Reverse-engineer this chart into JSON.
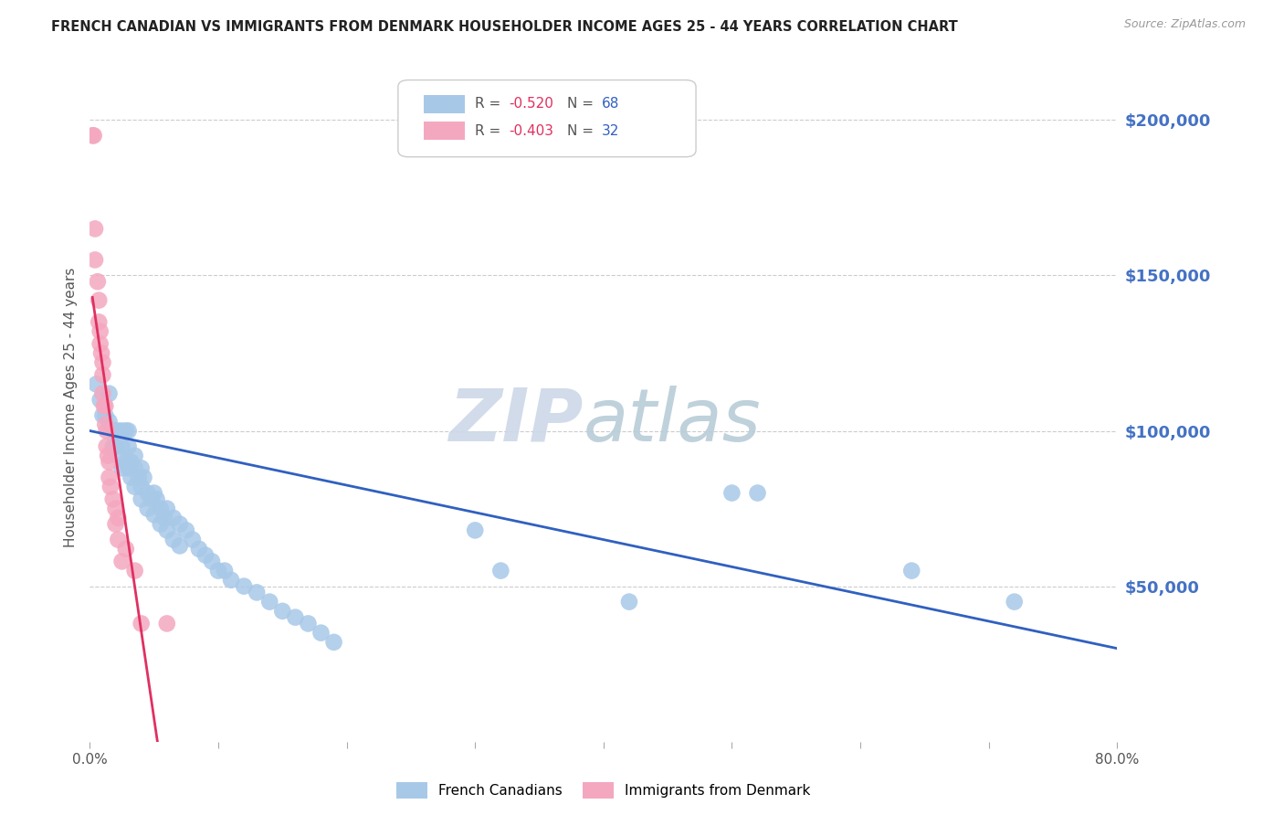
{
  "title": "FRENCH CANADIAN VS IMMIGRANTS FROM DENMARK HOUSEHOLDER INCOME AGES 25 - 44 YEARS CORRELATION CHART",
  "source": "Source: ZipAtlas.com",
  "ylabel": "Householder Income Ages 25 - 44 years",
  "yaxis_values": [
    200000,
    150000,
    100000,
    50000
  ],
  "ylim": [
    0,
    215000
  ],
  "xlim": [
    0.0,
    0.8
  ],
  "legend_blue_R": "-0.520",
  "legend_blue_N": "68",
  "legend_pink_R": "-0.403",
  "legend_pink_N": "32",
  "blue_color": "#a8c8e8",
  "pink_color": "#f4a8c0",
  "blue_line_color": "#3060c0",
  "pink_line_color": "#e03060",
  "right_axis_color": "#4472c4",
  "legend_R_color": "#e03060",
  "legend_N_color": "#3060c0",
  "watermark_color": "#ccd8e8",
  "blue_scatter_x": [
    0.005,
    0.008,
    0.01,
    0.012,
    0.015,
    0.015,
    0.018,
    0.018,
    0.02,
    0.02,
    0.022,
    0.022,
    0.025,
    0.025,
    0.025,
    0.028,
    0.028,
    0.03,
    0.03,
    0.03,
    0.032,
    0.032,
    0.035,
    0.035,
    0.035,
    0.038,
    0.04,
    0.04,
    0.04,
    0.042,
    0.045,
    0.045,
    0.048,
    0.05,
    0.05,
    0.052,
    0.055,
    0.055,
    0.058,
    0.06,
    0.06,
    0.065,
    0.065,
    0.07,
    0.07,
    0.075,
    0.08,
    0.085,
    0.09,
    0.095,
    0.1,
    0.105,
    0.11,
    0.12,
    0.13,
    0.14,
    0.15,
    0.16,
    0.17,
    0.18,
    0.19,
    0.3,
    0.32,
    0.42,
    0.5,
    0.52,
    0.64,
    0.72
  ],
  "blue_scatter_y": [
    115000,
    110000,
    105000,
    105000,
    112000,
    103000,
    100000,
    95000,
    100000,
    95000,
    100000,
    92000,
    100000,
    95000,
    88000,
    100000,
    90000,
    100000,
    95000,
    88000,
    90000,
    85000,
    92000,
    88000,
    82000,
    85000,
    88000,
    82000,
    78000,
    85000,
    80000,
    75000,
    78000,
    80000,
    73000,
    78000,
    75000,
    70000,
    72000,
    75000,
    68000,
    72000,
    65000,
    70000,
    63000,
    68000,
    65000,
    62000,
    60000,
    58000,
    55000,
    55000,
    52000,
    50000,
    48000,
    45000,
    42000,
    40000,
    38000,
    35000,
    32000,
    68000,
    55000,
    45000,
    80000,
    80000,
    55000,
    45000
  ],
  "pink_scatter_x": [
    0.002,
    0.003,
    0.004,
    0.004,
    0.006,
    0.007,
    0.007,
    0.008,
    0.008,
    0.009,
    0.01,
    0.01,
    0.01,
    0.011,
    0.012,
    0.012,
    0.013,
    0.013,
    0.014,
    0.015,
    0.015,
    0.016,
    0.018,
    0.02,
    0.02,
    0.022,
    0.022,
    0.025,
    0.028,
    0.035,
    0.04,
    0.06
  ],
  "pink_scatter_y": [
    195000,
    195000,
    165000,
    155000,
    148000,
    142000,
    135000,
    132000,
    128000,
    125000,
    122000,
    118000,
    112000,
    108000,
    108000,
    102000,
    100000,
    95000,
    92000,
    90000,
    85000,
    82000,
    78000,
    75000,
    70000,
    72000,
    65000,
    58000,
    62000,
    55000,
    38000,
    38000
  ]
}
